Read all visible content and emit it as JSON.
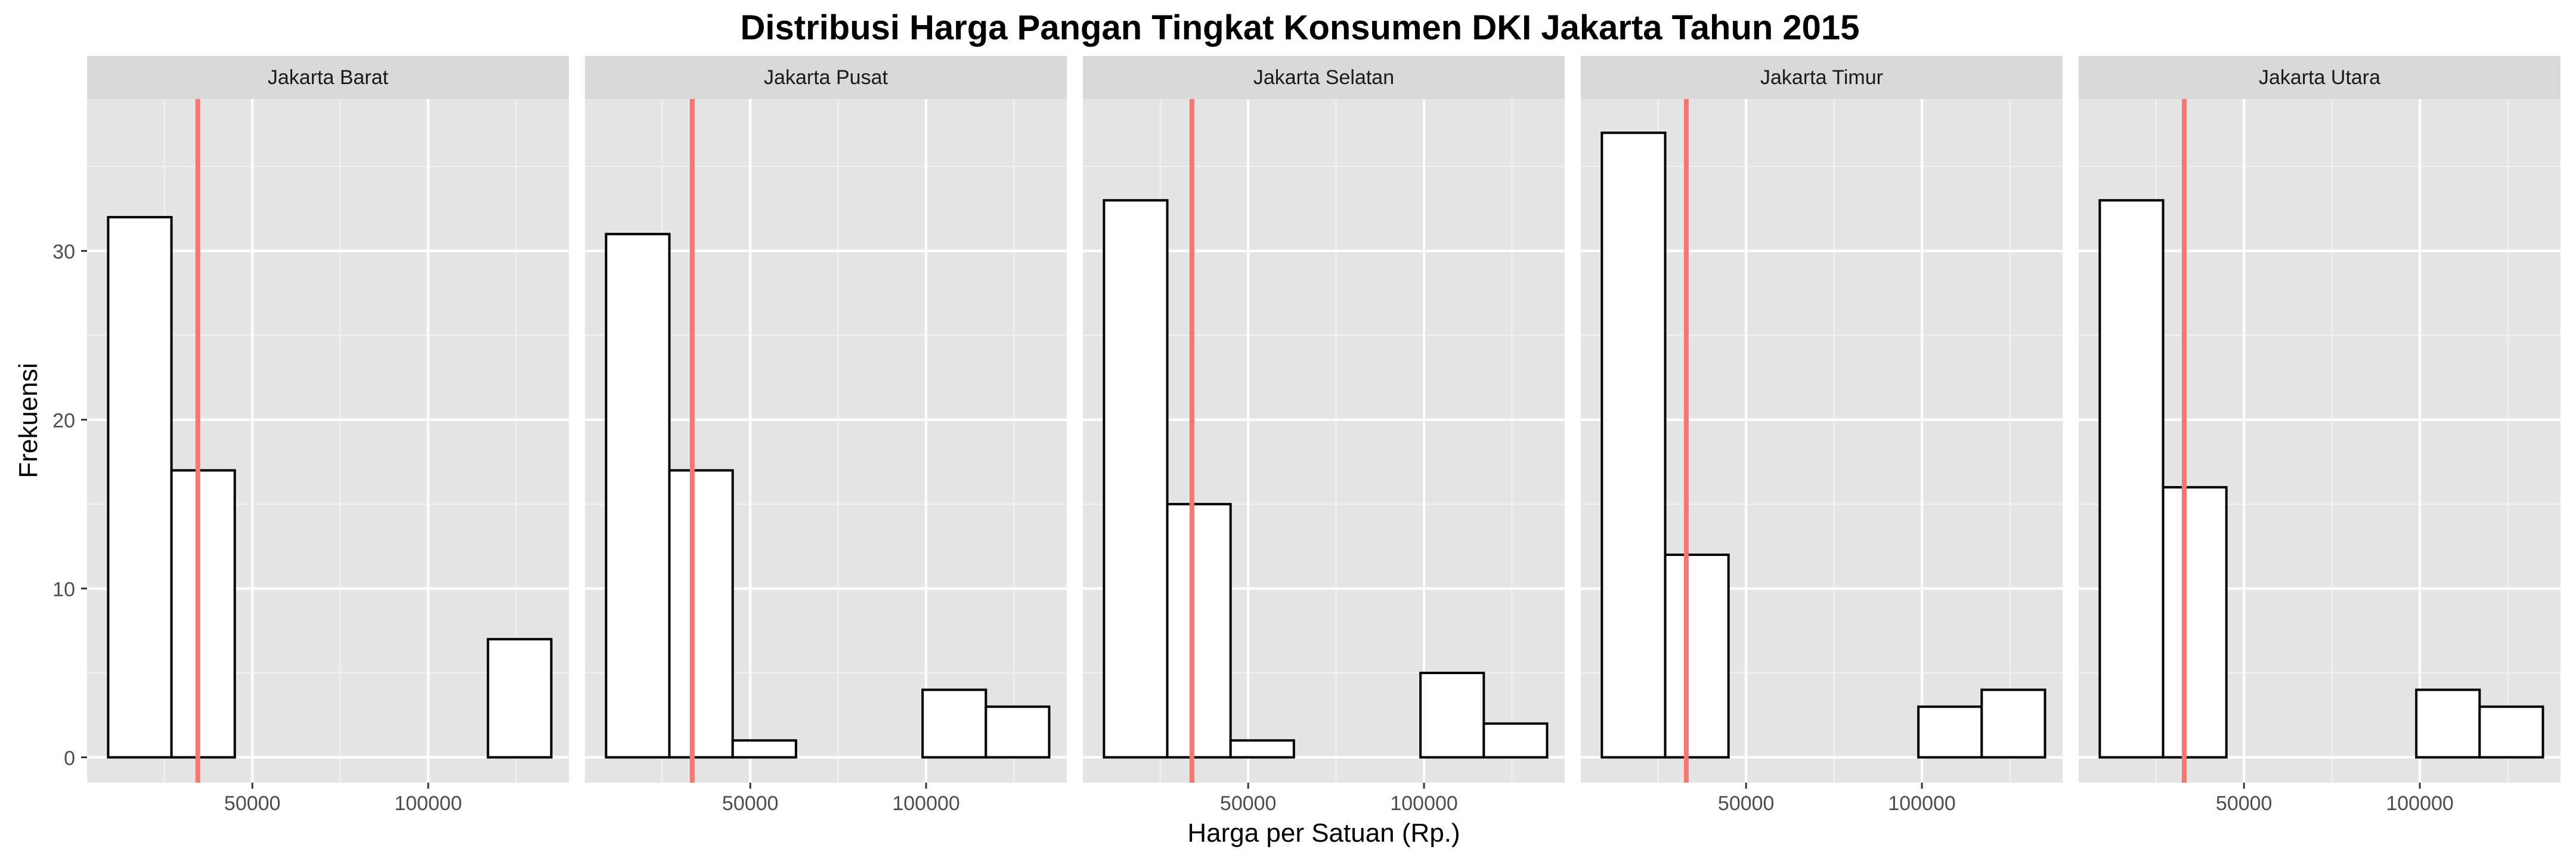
{
  "chart_data": {
    "type": "bar",
    "subtype": "faceted-histogram",
    "title": "Distribusi Harga Pangan Tingkat Konsumen DKI Jakarta Tahun 2015",
    "xlabel": "Harga per Satuan (Rp.)",
    "ylabel": "Frekuensi",
    "xlim": [
      3000,
      140000
    ],
    "ylim": [
      -1.5,
      39
    ],
    "x_ticks": [
      50000,
      100000
    ],
    "x_tick_labels": [
      "50000",
      "100000"
    ],
    "y_ticks": [
      0,
      10,
      20,
      30
    ],
    "y_tick_labels": [
      "0",
      "10",
      "20",
      "30"
    ],
    "bin_edges": [
      9000,
      27000,
      45000,
      63000,
      81000,
      99000,
      117000,
      135000
    ],
    "mean_line_color": "#F8766D",
    "panel_background": "#E5E5E5",
    "strip_background": "#D9D9D9",
    "bar_fill": "#FFFFFF",
    "bar_outline": "#000000",
    "grid": true,
    "facets": [
      {
        "label": "Jakarta Barat",
        "counts": [
          32,
          17,
          0,
          0,
          0,
          0,
          7
        ],
        "mean": 34500
      },
      {
        "label": "Jakarta Pusat",
        "counts": [
          31,
          17,
          1,
          0,
          0,
          4,
          3
        ],
        "mean": 33500
      },
      {
        "label": "Jakarta Selatan",
        "counts": [
          33,
          15,
          1,
          0,
          0,
          5,
          2
        ],
        "mean": 34000
      },
      {
        "label": "Jakarta Timur",
        "counts": [
          37,
          12,
          0,
          0,
          0,
          3,
          4
        ],
        "mean": 33000
      },
      {
        "label": "Jakarta Utara",
        "counts": [
          33,
          16,
          0,
          0,
          0,
          4,
          3
        ],
        "mean": 33000
      }
    ]
  }
}
